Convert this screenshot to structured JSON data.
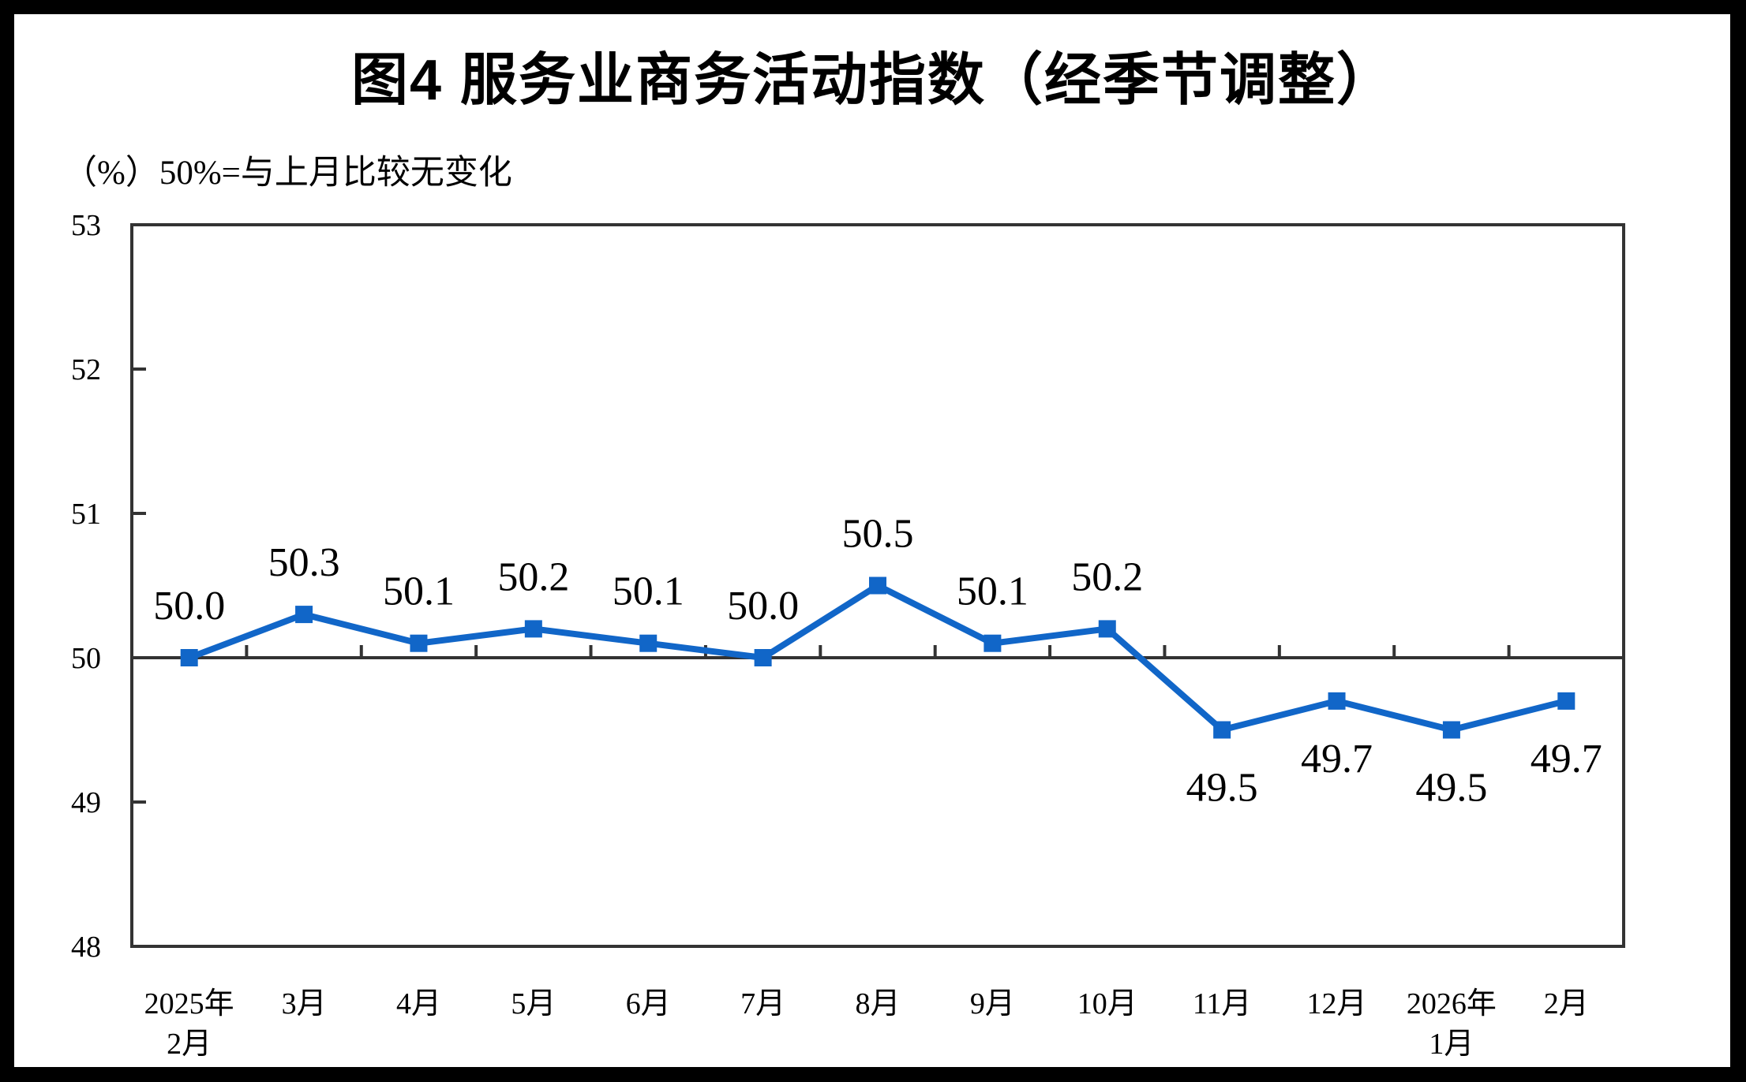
{
  "page": {
    "title": "图4  服务业商务活动指数（经季节调整）",
    "subtitle": "（%）50%=与上月比较无变化"
  },
  "colors": {
    "line": "#1166C8",
    "marker": "#1166C8",
    "axis": "#333333",
    "label_text": "#000000",
    "background": "#FFFFFF",
    "outer_border": "#000000"
  },
  "chart_data": {
    "type": "line",
    "title": "图4 服务业商务活动指数（经季节调整）",
    "unit_note": "（%）50%=与上月比较无变化",
    "categories": [
      [
        "2025年",
        "2月"
      ],
      [
        "3月"
      ],
      [
        "4月"
      ],
      [
        "5月"
      ],
      [
        "6月"
      ],
      [
        "7月"
      ],
      [
        "8月"
      ],
      [
        "9月"
      ],
      [
        "10月"
      ],
      [
        "11月"
      ],
      [
        "12月"
      ],
      [
        "2026年",
        "1月"
      ],
      [
        "2月"
      ]
    ],
    "values": [
      50.0,
      50.3,
      50.1,
      50.2,
      50.1,
      50.0,
      50.5,
      50.1,
      50.2,
      49.5,
      49.7,
      49.5,
      49.7
    ],
    "data_labels": [
      "50.0",
      "50.3",
      "50.1",
      "50.2",
      "50.1",
      "50.0",
      "50.5",
      "50.1",
      "50.2",
      "49.5",
      "49.7",
      "49.5",
      "49.7"
    ],
    "ylim": [
      48,
      53
    ],
    "yticks": [
      48,
      49,
      50,
      51,
      52,
      53
    ],
    "reference_line": 50,
    "marker": "square",
    "grid": false,
    "legend": "none"
  }
}
